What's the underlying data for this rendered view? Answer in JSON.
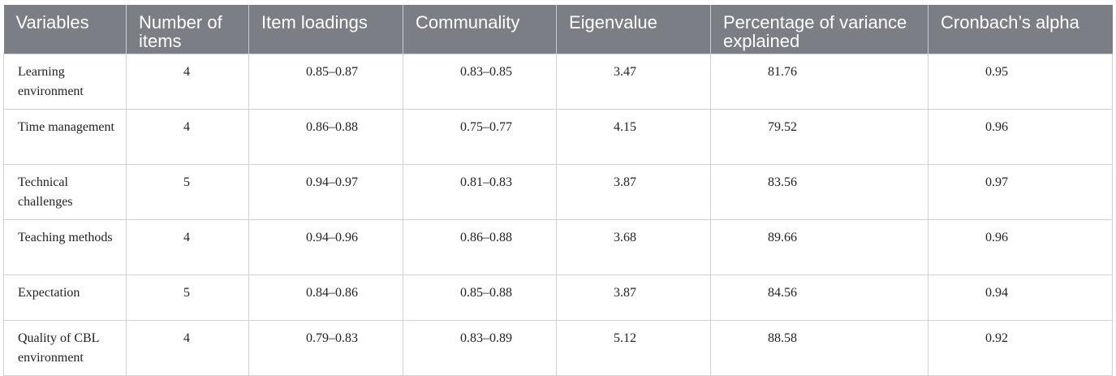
{
  "headers": [
    "Variables",
    "Number of items",
    "Item loadings",
    "Communality",
    "Eigenvalue",
    "Percentage of variance explained",
    "Cronbach’s alpha"
  ],
  "rows": [
    [
      "Learning environment",
      "4",
      "0.85–0.87",
      "0.83–0.85",
      "3.47",
      "81.76",
      "0.95"
    ],
    [
      "Time management",
      "4",
      "0.86–0.88",
      "0.75–0.77",
      "4.15",
      "79.52",
      "0.96"
    ],
    [
      "Technical challenges",
      "5",
      "0.94–0.97",
      "0.81–0.83",
      "3.87",
      "83.56",
      "0.97"
    ],
    [
      "Teaching methods",
      "4",
      "0.94–0.96",
      "0.86–0.88",
      "3.68",
      "89.66",
      "0.96"
    ],
    [
      "Expectation",
      "5",
      "0.84–0.86",
      "0.85–0.88",
      "3.87",
      "84.56",
      "0.94"
    ],
    [
      "Quality of CBL environment",
      "4",
      "0.79–0.83",
      "0.83–0.89",
      "5.12",
      "88.58",
      "0.92"
    ]
  ]
}
